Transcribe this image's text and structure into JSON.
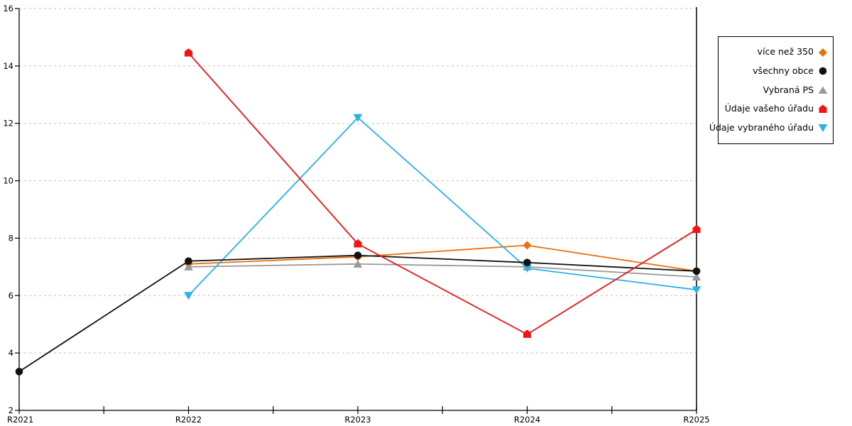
{
  "chart_data": {
    "type": "line",
    "title": "",
    "xlabel": "",
    "ylabel": "",
    "x_labels": [
      "R2021",
      "R2022",
      "R2023",
      "R2024",
      "R2025"
    ],
    "ylim": [
      2,
      16
    ],
    "y_ticks": [
      2,
      4,
      6,
      8,
      10,
      12,
      14,
      16
    ],
    "grid": "horizontal-dashed",
    "grid_color": "#c0c0c0",
    "axis_color": "#000000",
    "legend_position": "right-outside",
    "series": [
      {
        "name": "více než 350",
        "color": "#e8720c",
        "marker": "diamond",
        "values": [
          null,
          7.1,
          7.35,
          7.75,
          6.85
        ]
      },
      {
        "name": "všechny obce",
        "color": "#111111",
        "marker": "circle",
        "values": [
          3.35,
          7.2,
          7.4,
          7.15,
          6.85
        ]
      },
      {
        "name": "Vybraná PS",
        "color": "#999999",
        "marker": "triangle-up",
        "values": [
          null,
          7.0,
          7.1,
          7.0,
          6.65
        ]
      },
      {
        "name": "Údaje vašeho úřadu",
        "color": "#f01414",
        "marker": "pentagon",
        "values": [
          null,
          14.45,
          7.8,
          4.65,
          8.3
        ]
      },
      {
        "name": "Údaje vybraného úřadu",
        "color": "#29b2e7",
        "marker": "triangle-down",
        "values": [
          null,
          6.0,
          12.2,
          6.95,
          6.2
        ]
      }
    ]
  }
}
